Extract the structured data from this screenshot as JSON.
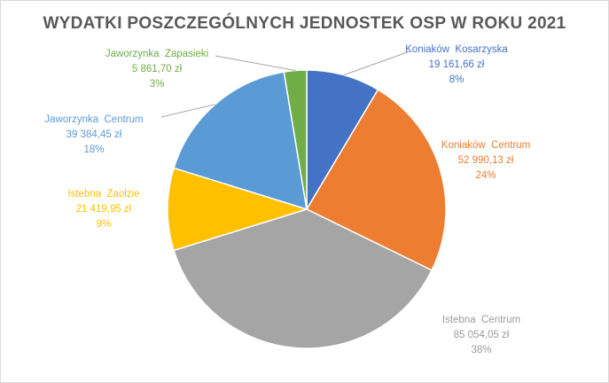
{
  "chart_data": {
    "type": "pie",
    "title": "WYDATKI POSZCZEGÓLNYCH  JEDNOSTEK OSP W ROKU 2021",
    "slices": [
      {
        "name": "Koniaków  Kosarzyska",
        "value_label": "19 161,66 zł",
        "percent_label": "8%",
        "value": 19161.66,
        "color": "#4472C4"
      },
      {
        "name": "Koniaków  Centrum",
        "value_label": "52 990,13 zł",
        "percent_label": "24%",
        "value": 52990.13,
        "color": "#ED7D31"
      },
      {
        "name": "Istebna  Centrum",
        "value_label": "85 054,05 zł",
        "percent_label": "38%",
        "value": 85054.05,
        "color": "#A5A5A5"
      },
      {
        "name": "Istebna  Zaolzie",
        "value_label": "21 419,95 zł",
        "percent_label": "9%",
        "value": 21419.95,
        "color": "#FFC000"
      },
      {
        "name": "Jaworzynka  Centrum",
        "value_label": "39 384,45 zł",
        "percent_label": "18%",
        "value": 39384.45,
        "color": "#5B9BD5"
      },
      {
        "name": "Jaworzynka  Zapasieki",
        "value_label": "5 861,70 zł",
        "percent_label": "3%",
        "value": 5861.7,
        "color": "#70AD47"
      }
    ]
  }
}
